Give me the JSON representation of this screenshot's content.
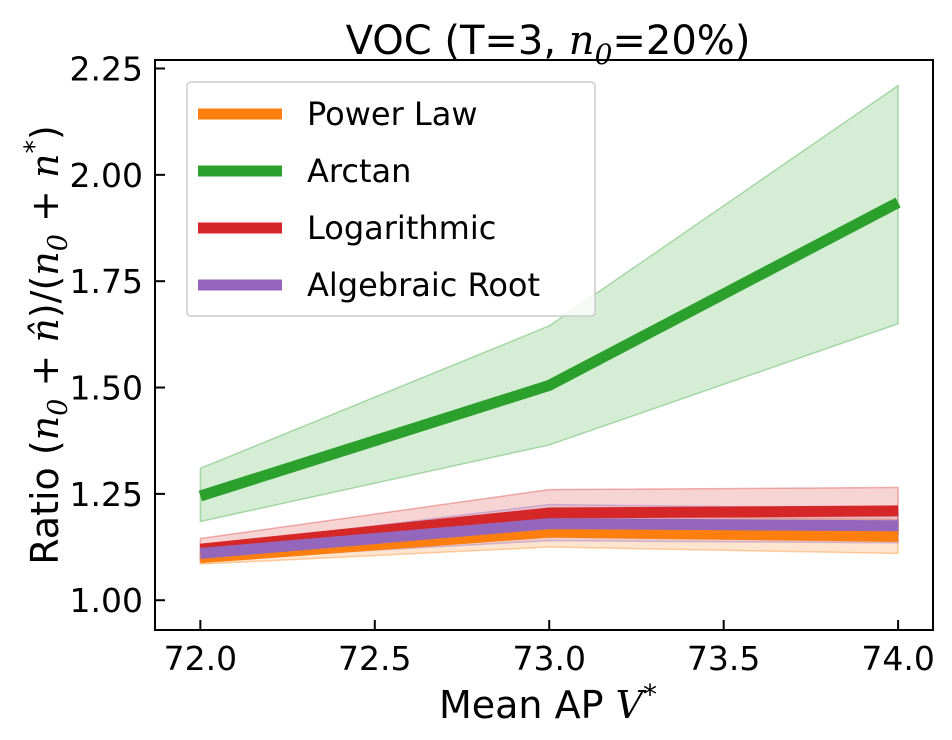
{
  "chart_data": {
    "type": "line",
    "title": "VOC (T=3, n0=20%)",
    "title_parts": {
      "prefix": "VOC (T=3, ",
      "var": "n",
      "sub": "0",
      "suffix": "=20%)"
    },
    "xlabel": "Mean AP V*",
    "xlabel_parts": {
      "prefix": "Mean AP ",
      "var": "V",
      "sup": "*"
    },
    "ylabel": "Ratio (n0 + n̂)/(n0 + n*)",
    "ylabel_parts": {
      "p1": "Ratio (",
      "n1": "n",
      "s1": "0",
      "p2": " + ",
      "n2": "n̂",
      "p3": ")/(",
      "n3": "n",
      "s3": "0",
      "p4": " + ",
      "n4": "n",
      "sup4": "*",
      "p5": ")"
    },
    "x": [
      72.0,
      73.0,
      74.0
    ],
    "xlim": [
      71.87,
      74.1
    ],
    "ylim": [
      0.93,
      2.27
    ],
    "xticks": [
      72.0,
      72.5,
      73.0,
      73.5,
      74.0
    ],
    "xtick_labels": [
      "72.0",
      "72.5",
      "73.0",
      "73.5",
      "74.0"
    ],
    "yticks": [
      1.0,
      1.25,
      1.5,
      1.75,
      2.0,
      2.25
    ],
    "ytick_labels": [
      "1.00",
      "1.25",
      "1.50",
      "1.75",
      "2.00",
      "2.25"
    ],
    "grid": false,
    "legend_position": "top-left",
    "series": [
      {
        "name": "Power Law",
        "color": "#ff7f0e",
        "values": [
          1.1,
          1.16,
          1.15
        ],
        "lower": [
          1.085,
          1.125,
          1.11
        ],
        "upper": [
          1.115,
          1.2,
          1.19
        ]
      },
      {
        "name": "Arctan",
        "color": "#2ca02c",
        "values": [
          1.245,
          1.505,
          1.935
        ],
        "lower": [
          1.185,
          1.365,
          1.65
        ],
        "upper": [
          1.31,
          1.645,
          2.21
        ]
      },
      {
        "name": "Logarithmic",
        "color": "#d62728",
        "values": [
          1.12,
          1.205,
          1.21
        ],
        "lower": [
          1.09,
          1.15,
          1.155
        ],
        "upper": [
          1.145,
          1.26,
          1.265
        ]
      },
      {
        "name": "Algebraic Root",
        "color": "#9467bd",
        "values": [
          1.11,
          1.18,
          1.175
        ],
        "lower": [
          1.095,
          1.14,
          1.135
        ],
        "upper": [
          1.125,
          1.225,
          1.215
        ]
      }
    ],
    "legend_order": [
      0,
      1,
      2,
      3
    ]
  }
}
